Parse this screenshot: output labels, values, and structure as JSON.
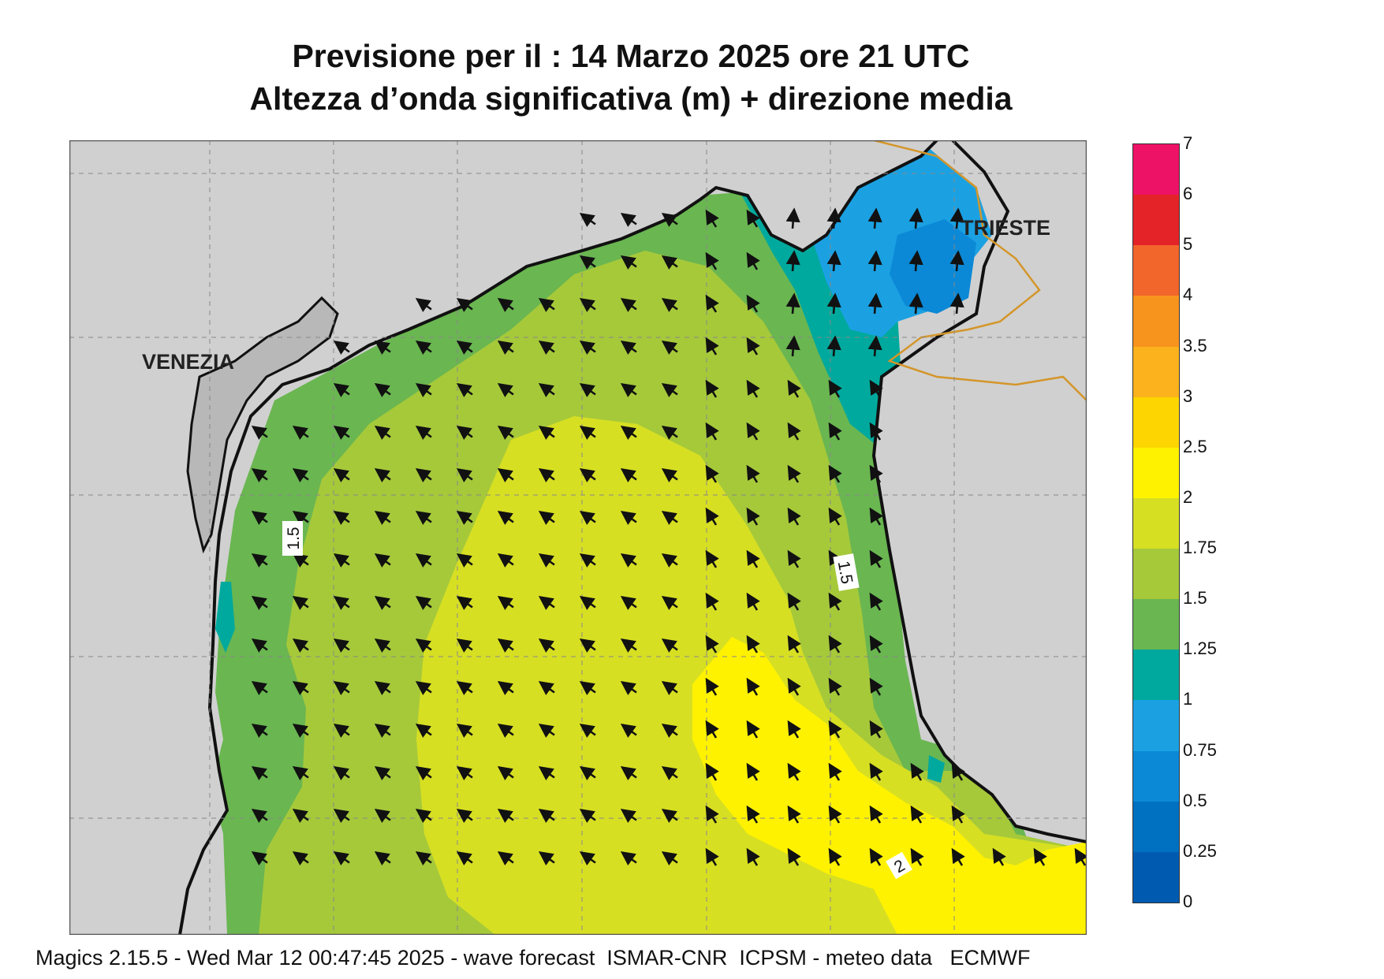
{
  "header": {
    "title_line1": "Previsione per il  :  14   Marzo   2025   ore 21 UTC",
    "title_line2": "Altezza d’onda significativa (m) + direzione media"
  },
  "map": {
    "city_labels": [
      "VENEZIA",
      "TRIESTE"
    ],
    "contour_labels": [
      "1.5",
      "1.5",
      "2"
    ],
    "land_color": "#d0d0d0",
    "border_color": "#d4962a",
    "grid": "dashed"
  },
  "legend": {
    "ticks": [
      "7",
      "6",
      "5",
      "4",
      "3.5",
      "3",
      "2.5",
      "2",
      "1.75",
      "1.5",
      "1.25",
      "1",
      "0.75",
      "0.5",
      "0.25",
      "0"
    ],
    "colors": [
      "#ee1266",
      "#e42329",
      "#f2652b",
      "#f7941d",
      "#fbb21c",
      "#fdd500",
      "#fff200",
      "#d7df23",
      "#a6c93a",
      "#6ab651",
      "#00a99d",
      "#1ba1e2",
      "#0b89d6",
      "#0070c0",
      "#005bb0"
    ]
  },
  "footer": {
    "text": "Magics 2.15.5 - Wed Mar 12 00:47:45 2025 - wave forecast  ISMAR-CNR  ICPSM - meteo data   ECMWF"
  }
}
